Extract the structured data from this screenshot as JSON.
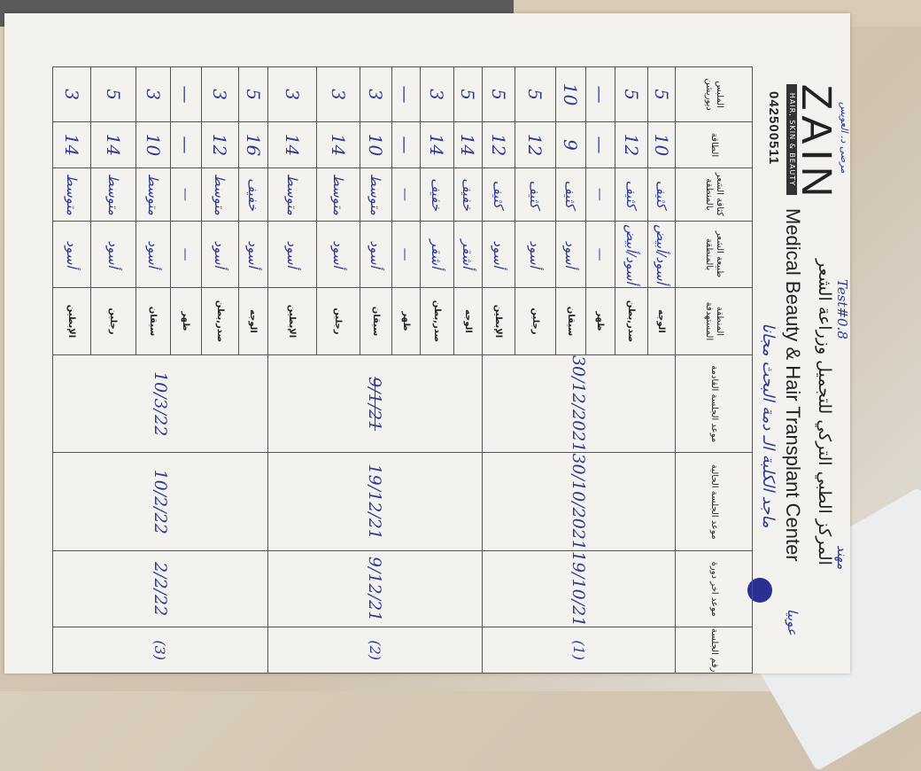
{
  "header": {
    "logo_word": "ZAIN",
    "logo_tagline": "HAIR, SKIN & BEAUTY",
    "phone": "042500511",
    "title_ar": "المركز الطبي التركي للتجميل وزراعة الشعر",
    "title_en": "Medical Beauty & Hair Transplant Center"
  },
  "handwritten_notes": {
    "test": "Test#0.8",
    "top_right": "مهند",
    "top_left": "مرضى د. العويس",
    "side": "عوبيا",
    "patient_line": "ماجد الكلبة الـ دمة البحث مجانا"
  },
  "columns": [
    "رقم الجلسة",
    "موعد اخر دورة",
    "موعد الجلسة الحالية",
    "موعد الجلسة القادمة",
    "المنطقة المستهدفة",
    "طبيعة الشعر بالمنطقة",
    "كثافة الشعر بالمنطقة",
    "الطاقة",
    "الملبس ديوريشن"
  ],
  "sessions": [
    {
      "number": "(1)",
      "last": "19/10/21",
      "current": "30/10/2021",
      "next": "30/12/2021"
    },
    {
      "number": "(2)",
      "last": "9/12/21",
      "current": "19/12/21",
      "next": "9/1/21"
    },
    {
      "number": "(3)",
      "last": "2/2/22",
      "current": "10/2/22",
      "next": "10/3/22"
    }
  ],
  "rows": [
    {
      "area": "الوجه",
      "nature": "أسود/أبيض",
      "density": "كثيف",
      "energy": "10",
      "duration": "5"
    },
    {
      "area": "صدر,بطن",
      "nature": "أسود/أبيض",
      "density": "كثيف",
      "energy": "12",
      "duration": "5"
    },
    {
      "area": "ظهر",
      "nature": "—",
      "density": "—",
      "energy": "—",
      "duration": "—"
    },
    {
      "area": "سيقان",
      "nature": "أسود",
      "density": "كثيف",
      "energy": "9",
      "duration": "10"
    },
    {
      "area": "رجلين",
      "nature": "أسود",
      "density": "كثيف",
      "energy": "12",
      "duration": "5"
    },
    {
      "area": "الإبطين",
      "nature": "أسود",
      "density": "كثيف",
      "energy": "12",
      "duration": "5"
    },
    {
      "area": "الوجه",
      "nature": "أشقر",
      "density": "خفيف",
      "energy": "14",
      "duration": "5"
    },
    {
      "area": "صدر,بطن",
      "nature": "أشقر",
      "density": "خفيف",
      "energy": "14",
      "duration": "3"
    },
    {
      "area": "ظهر",
      "nature": "—",
      "density": "—",
      "energy": "—",
      "duration": "—"
    },
    {
      "area": "سيقان",
      "nature": "أسود",
      "density": "متوسط",
      "energy": "10",
      "duration": "3"
    },
    {
      "area": "رجلين",
      "nature": "أسود",
      "density": "متوسط",
      "energy": "14",
      "duration": "3"
    },
    {
      "area": "الإبطين",
      "nature": "أسود",
      "density": "متوسط",
      "energy": "14",
      "duration": "3"
    },
    {
      "area": "الوجه",
      "nature": "أسود",
      "density": "خفيف",
      "energy": "16",
      "duration": "5"
    },
    {
      "area": "صدر,بطن",
      "nature": "أسود",
      "density": "متوسط",
      "energy": "12",
      "duration": "3"
    },
    {
      "area": "ظهر",
      "nature": "—",
      "density": "—",
      "energy": "—",
      "duration": "—"
    },
    {
      "area": "سيقان",
      "nature": "أسود",
      "density": "متوسط",
      "energy": "10",
      "duration": "3"
    },
    {
      "area": "رجلين",
      "nature": "أسود",
      "density": "متوسط",
      "energy": "14",
      "duration": "5"
    },
    {
      "area": "الإبطين",
      "nature": "أسود",
      "density": "متوسط",
      "energy": "14",
      "duration": "3"
    }
  ],
  "colors": {
    "ink": "#2b3a93",
    "paper": "#f3f2ee"
  }
}
